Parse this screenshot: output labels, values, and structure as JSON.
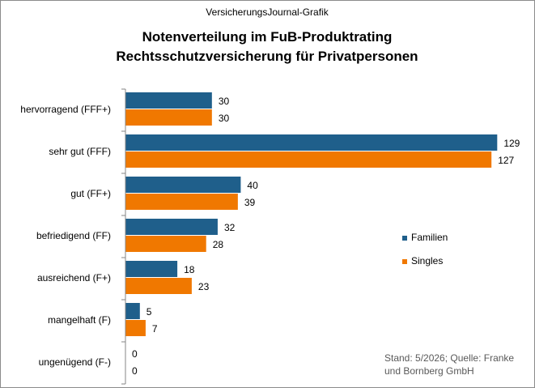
{
  "header": {
    "source_label": "VersicherungsJournal-Grafik"
  },
  "chart_data": {
    "type": "bar",
    "orientation": "horizontal",
    "title": "Notenverteilung im FuB-Produktrating",
    "subtitle": "Rechtsschutzversicherung für Privatpersonen",
    "categories": [
      "hervorragend (FFF+)",
      "sehr gut (FFF)",
      "gut (FF+)",
      "befriedigend (FF)",
      "ausreichend (F+)",
      "mangelhaft (F)",
      "ungenügend (F-)"
    ],
    "series": [
      {
        "name": "Familien",
        "color": "#1f5f8b",
        "values": [
          30,
          129,
          40,
          32,
          18,
          5,
          0
        ]
      },
      {
        "name": "Singles",
        "color": "#f07800",
        "values": [
          30,
          127,
          39,
          28,
          23,
          7,
          0
        ]
      }
    ],
    "xlim": [
      0,
      132
    ],
    "grid": false,
    "legend_position": "right",
    "note_lines": [
      "Stand: 5/2026; Quelle: Franke",
      "und Bornberg GmbH"
    ]
  }
}
